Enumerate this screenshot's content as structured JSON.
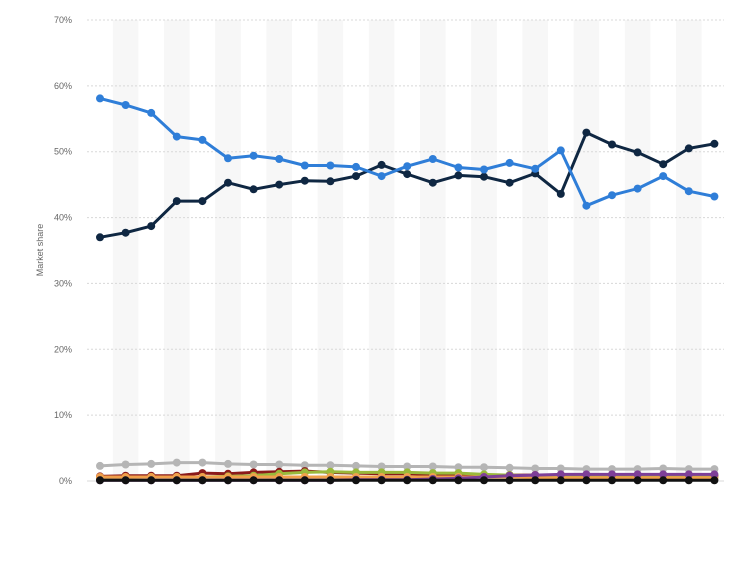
{
  "chart_data": {
    "type": "line",
    "title": "",
    "xlabel": "",
    "ylabel": "Market share",
    "ylim": [
      0,
      70
    ],
    "yticks": [
      0,
      10,
      20,
      30,
      40,
      50,
      60,
      70
    ],
    "ytick_labels": [
      "0%",
      "10%",
      "20%",
      "30%",
      "40%",
      "50%",
      "60%",
      "70%"
    ],
    "grid": true,
    "legend": "none",
    "x": [
      1,
      2,
      3,
      4,
      5,
      6,
      7,
      8,
      9,
      10,
      11,
      12,
      13,
      14,
      15,
      16,
      17,
      18,
      19,
      20,
      21,
      22,
      23,
      24,
      25
    ],
    "series": [
      {
        "color": "#2f7ed8",
        "values": [
          58.1,
          57.1,
          55.9,
          52.3,
          51.8,
          49.0,
          49.4,
          48.9,
          47.9,
          47.9,
          47.7,
          46.3,
          47.8,
          48.9,
          47.6,
          47.3,
          48.3,
          47.4,
          50.2,
          41.8,
          43.4,
          44.4,
          46.3,
          44.0,
          43.2
        ]
      },
      {
        "color": "#0f2742",
        "values": [
          37.0,
          37.7,
          38.7,
          42.5,
          42.5,
          45.3,
          44.3,
          45.0,
          45.6,
          45.5,
          46.3,
          48.0,
          46.6,
          45.3,
          46.4,
          46.2,
          45.3,
          46.7,
          43.6,
          52.9,
          51.1,
          49.9,
          48.1,
          50.5,
          51.2
        ]
      },
      {
        "color": "#b5b5b5",
        "values": [
          2.3,
          2.5,
          2.6,
          2.8,
          2.8,
          2.6,
          2.5,
          2.5,
          2.4,
          2.4,
          2.3,
          2.2,
          2.2,
          2.2,
          2.1,
          2.1,
          2.0,
          1.9,
          1.9,
          1.8,
          1.8,
          1.8,
          1.9,
          1.8,
          1.8
        ]
      },
      {
        "color": "#8b1a1a",
        "values": [
          0.7,
          0.8,
          0.8,
          0.8,
          1.2,
          1.1,
          1.3,
          1.4,
          1.5,
          1.3,
          1.2,
          1.1,
          1.1,
          1.0,
          1.0,
          0.9,
          0.9,
          0.9,
          0.8,
          0.8,
          0.8,
          0.8,
          0.8,
          0.8,
          0.8
        ]
      },
      {
        "color": "#9ab93b",
        "values": [
          0.4,
          0.5,
          0.6,
          0.6,
          0.6,
          0.7,
          0.8,
          1.1,
          1.3,
          1.4,
          1.3,
          1.3,
          1.3,
          1.2,
          1.2,
          1.0,
          0.9,
          0.8,
          0.8,
          0.7,
          0.7,
          0.7,
          0.7,
          0.7,
          0.6
        ]
      },
      {
        "color": "#f0a04b",
        "values": [
          0.6,
          0.6,
          0.6,
          0.6,
          0.6,
          0.6,
          0.6,
          0.6,
          0.6,
          0.6,
          0.6,
          0.6,
          0.6,
          0.6,
          0.6,
          0.6,
          0.6,
          0.5,
          0.5,
          0.5,
          0.5,
          0.5,
          0.5,
          0.5,
          0.5
        ]
      },
      {
        "color": "#7e3f98",
        "values": [
          0.1,
          0.1,
          0.1,
          0.1,
          0.1,
          0.1,
          0.1,
          0.1,
          0.1,
          0.1,
          0.2,
          0.2,
          0.2,
          0.3,
          0.4,
          0.6,
          0.8,
          0.9,
          1.0,
          1.0,
          1.0,
          1.0,
          1.0,
          1.0,
          1.0
        ]
      },
      {
        "color": "#111111",
        "values": [
          0.1,
          0.1,
          0.1,
          0.1,
          0.1,
          0.1,
          0.1,
          0.1,
          0.1,
          0.1,
          0.1,
          0.1,
          0.1,
          0.1,
          0.1,
          0.1,
          0.1,
          0.1,
          0.1,
          0.1,
          0.1,
          0.1,
          0.1,
          0.1,
          0.1
        ]
      }
    ]
  }
}
